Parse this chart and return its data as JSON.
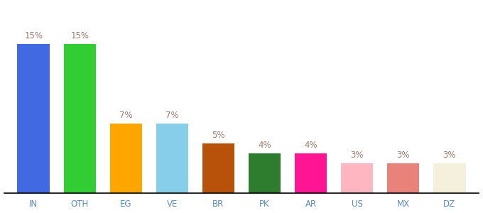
{
  "categories": [
    "IN",
    "OTH",
    "EG",
    "VE",
    "BR",
    "PK",
    "AR",
    "US",
    "MX",
    "DZ"
  ],
  "values": [
    15,
    15,
    7,
    7,
    5,
    4,
    4,
    3,
    3,
    3
  ],
  "bar_colors": [
    "#4169E1",
    "#32CD32",
    "#FFA500",
    "#87CEEB",
    "#B8520A",
    "#2E7D2E",
    "#FF1493",
    "#FFB6C1",
    "#E8827A",
    "#F5F0DC"
  ],
  "label_color": "#9E7B6E",
  "label_fontsize": 8.5,
  "xlabel_fontsize": 8.5,
  "xlabel_color": "#5B8DB8",
  "background_color": "#FFFFFF",
  "ylim": [
    0,
    19
  ],
  "bar_width": 0.7
}
